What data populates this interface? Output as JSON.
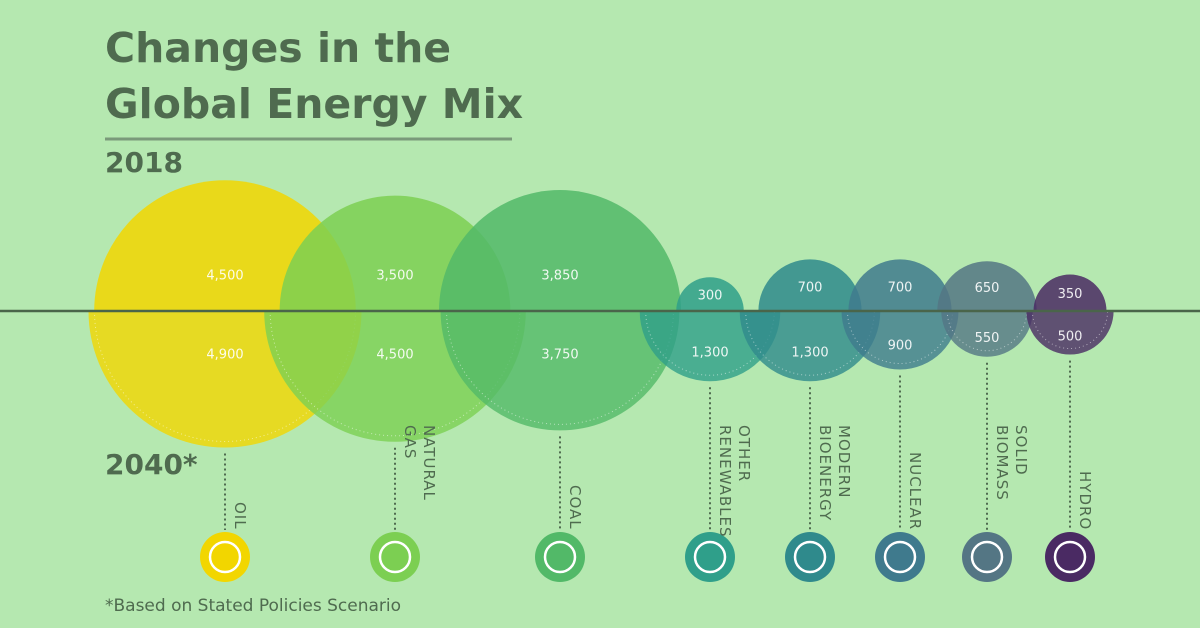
{
  "chart_data": {
    "type": "split-bubble",
    "title": "Changes in the Global Energy Mix",
    "footnote": "*Based on Stated Policies Scenario",
    "categories": [
      "OIL",
      "NATURAL GAS",
      "COAL",
      "OTHER RENEWABLES",
      "MODERN BIOENERGY",
      "NUCLEAR",
      "SOLID BIOMASS",
      "HYDRO"
    ],
    "colors": [
      "#f2d600",
      "#7ccf52",
      "#52b968",
      "#2f9f8a",
      "#2f8a8c",
      "#3f7a8d",
      "#547684",
      "#4a2a63"
    ],
    "series": [
      {
        "name": "2018",
        "values": [
          4500,
          3500,
          3850,
          300,
          700,
          700,
          650,
          350
        ],
        "value_labels": [
          "4,500",
          "3,500",
          "3,850",
          "300",
          "700",
          "700",
          "650",
          "350"
        ]
      },
      {
        "name": "2040*",
        "values": [
          4900,
          4500,
          3750,
          1300,
          1300,
          900,
          550,
          500
        ],
        "value_labels": [
          "4,900",
          "4,500",
          "3,750",
          "1,300",
          "1,300",
          "900",
          "550",
          "500"
        ]
      }
    ]
  }
}
